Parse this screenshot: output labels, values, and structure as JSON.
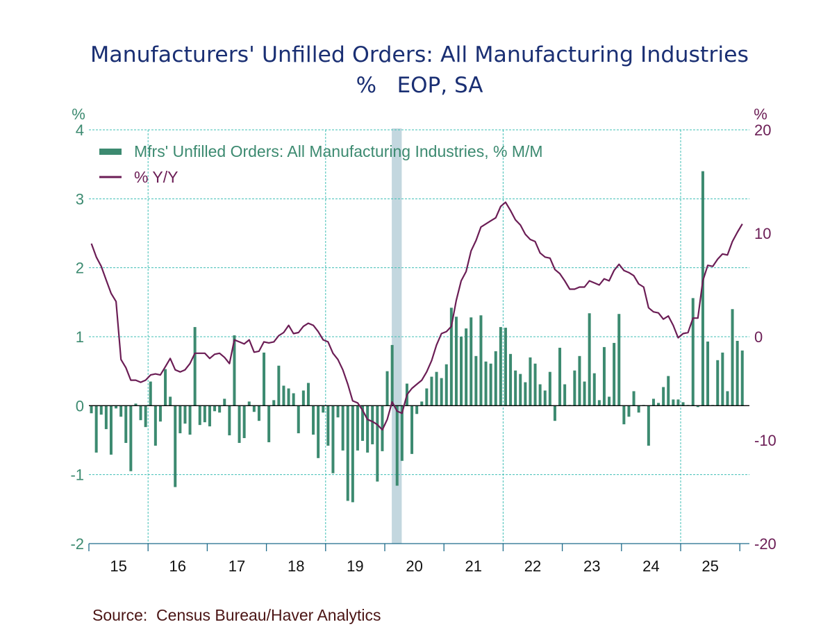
{
  "chart_data": {
    "type": "bar+line",
    "title": "Manufacturers' Unfilled Orders: All Manufacturing Industries",
    "subtitle": "%   EOP, SA",
    "source": "Source:  Census Bureau/Haver Analytics",
    "left_axis": {
      "unit_label": "%",
      "ylim": [
        -2,
        4
      ],
      "ticks": [
        "4",
        "3",
        "2",
        "1",
        "0",
        "-1",
        "-2"
      ],
      "tick_values": [
        4,
        3,
        2,
        1,
        0,
        -1,
        -2
      ]
    },
    "right_axis": {
      "unit_label": "%",
      "ylim": [
        -20,
        20
      ],
      "ticks": [
        "20",
        "10",
        "0",
        "-10",
        "-20"
      ],
      "tick_values": [
        20,
        10,
        0,
        -10,
        -20
      ]
    },
    "x_axis": {
      "start": "2015-01",
      "end": "2026-01",
      "year_labels": [
        "15",
        "16",
        "17",
        "18",
        "19",
        "20",
        "21",
        "22",
        "23",
        "24",
        "25"
      ]
    },
    "grid": true,
    "legend_position": "top-left",
    "recession_shading": {
      "start": "2020-02",
      "end": "2020-04",
      "color": "#c3d7df"
    },
    "colors": {
      "bars": "#3c8a70",
      "line": "#6b1d55",
      "grid": "#3fbfb5",
      "axis": "#1f6b8a",
      "title": "#1a2f73"
    },
    "series": [
      {
        "name": "Mfrs' Unfilled Orders: All Manufacturing Industries, % M/M",
        "type": "bar",
        "axis": "left",
        "values": [
          -0.11,
          -0.68,
          -0.13,
          -0.34,
          -0.71,
          -0.04,
          -0.16,
          -0.54,
          -0.95,
          0.03,
          -0.21,
          -0.31,
          0.35,
          -0.58,
          -0.23,
          0.53,
          0.13,
          -1.18,
          -0.4,
          -0.26,
          -0.42,
          1.14,
          -0.28,
          -0.24,
          -0.3,
          -0.08,
          -0.1,
          0.1,
          -0.43,
          1.02,
          -0.54,
          -0.47,
          0.06,
          -0.09,
          -0.22,
          0.77,
          -0.53,
          0.08,
          0.58,
          0.29,
          0.25,
          0.18,
          -0.4,
          0.22,
          0.33,
          -0.42,
          -0.76,
          -0.1,
          -0.58,
          -0.98,
          -0.17,
          -0.65,
          -1.38,
          -1.4,
          -0.65,
          -0.51,
          -0.68,
          -0.56,
          -1.1,
          -0.66,
          0.5,
          0.88,
          -1.16,
          -0.8,
          0.32,
          -0.7,
          -0.12,
          0.06,
          0.25,
          0.42,
          0.49,
          0.4,
          0.6,
          1.42,
          1.29,
          1.0,
          1.12,
          1.28,
          0.72,
          1.31,
          0.64,
          0.61,
          0.79,
          1.14,
          1.13,
          0.75,
          0.51,
          0.46,
          0.34,
          0.7,
          0.61,
          0.31,
          0.22,
          0.49,
          -0.22,
          0.84,
          0.31,
          0.01,
          0.51,
          0.72,
          0.35,
          1.34,
          0.47,
          0.08,
          0.85,
          0.13,
          0.91,
          1.33,
          -0.27,
          -0.16,
          0.21,
          -0.1,
          0.01,
          -0.58,
          0.1,
          0.04,
          0.27,
          0.43,
          0.09,
          0.09,
          0.05,
          0.01,
          1.56,
          -0.02,
          3.4,
          0.93,
          0.01,
          0.66,
          0.77,
          0.21,
          1.4,
          0.94,
          0.8
        ]
      },
      {
        "name": "% Y/Y",
        "type": "line",
        "axis": "right",
        "values": [
          9.0,
          7.7,
          6.8,
          5.5,
          4.2,
          3.4,
          -2.2,
          -3.0,
          -4.2,
          -4.2,
          -4.4,
          -4.2,
          -3.7,
          -3.6,
          -3.7,
          -2.9,
          -2.1,
          -3.2,
          -3.4,
          -3.2,
          -2.6,
          -1.6,
          -1.6,
          -1.6,
          -2.1,
          -1.7,
          -1.6,
          -2.0,
          -2.6,
          -0.3,
          -0.5,
          -0.7,
          -0.3,
          -1.5,
          -1.4,
          -0.5,
          -0.6,
          -0.5,
          0.1,
          0.4,
          1.1,
          0.3,
          0.4,
          1.0,
          1.3,
          1.1,
          0.5,
          -0.3,
          -0.5,
          -1.6,
          -2.2,
          -3.2,
          -4.6,
          -6.2,
          -6.4,
          -7.1,
          -8.0,
          -8.2,
          -8.5,
          -9.0,
          -8.0,
          -6.3,
          -7.2,
          -7.4,
          -5.6,
          -5.0,
          -4.6,
          -4.2,
          -3.4,
          -2.3,
          -0.8,
          0.3,
          0.5,
          1.0,
          3.5,
          5.4,
          6.3,
          8.3,
          9.3,
          10.6,
          10.9,
          11.2,
          11.5,
          12.6,
          13.0,
          12.2,
          11.3,
          10.8,
          9.9,
          9.4,
          9.2,
          8.1,
          7.7,
          7.6,
          6.5,
          6.1,
          5.4,
          4.6,
          4.6,
          4.8,
          4.8,
          5.4,
          5.2,
          5.0,
          5.6,
          5.4,
          6.4,
          7.0,
          6.4,
          6.2,
          5.9,
          5.1,
          4.8,
          2.8,
          2.4,
          2.3,
          1.7,
          2.0,
          1.1,
          -0.1,
          0.3,
          0.4,
          1.8,
          1.8,
          5.4,
          6.9,
          6.8,
          7.5,
          8.0,
          7.9,
          9.2,
          10.1,
          10.9
        ]
      }
    ]
  }
}
